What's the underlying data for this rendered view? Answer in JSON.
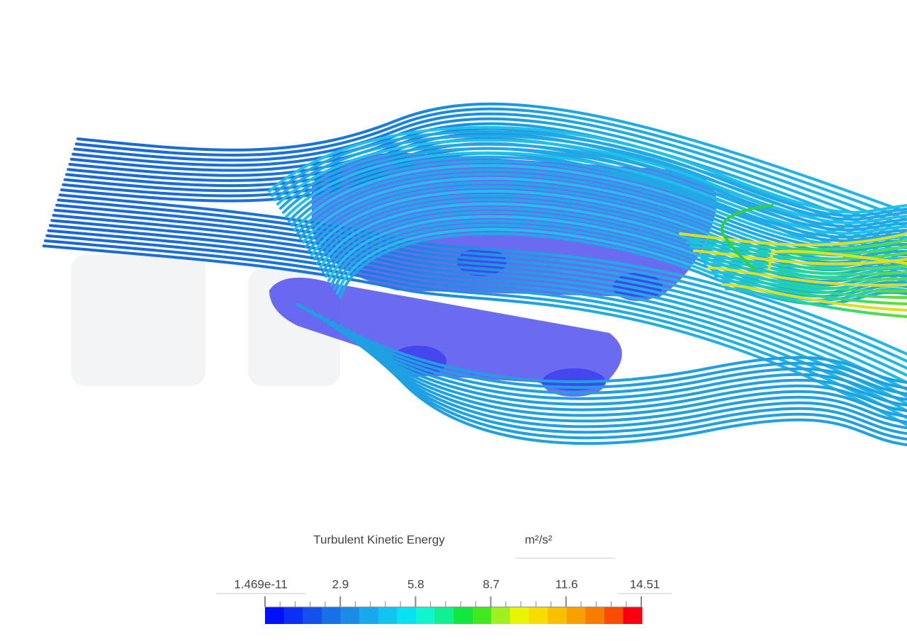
{
  "legend": {
    "title": "Turbulent Kinetic Energy",
    "unit": "m²/s²",
    "ticks": [
      "1.469e-11",
      "2.9",
      "5.8",
      "8.7",
      "11.6",
      "14.51"
    ]
  }
}
